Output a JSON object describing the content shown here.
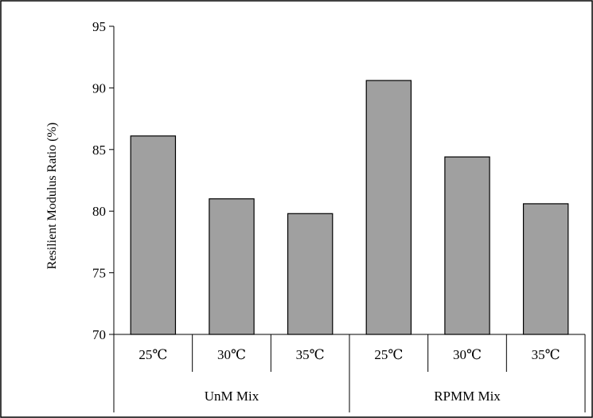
{
  "chart_data": {
    "type": "bar",
    "title": "",
    "xlabel": "",
    "ylabel": "Resilient Modulus Ratio (%)",
    "ylim": [
      70,
      95
    ],
    "yticks": [
      70,
      75,
      80,
      85,
      90,
      95
    ],
    "grid": false,
    "legend": "none",
    "groups": [
      {
        "label": "UnM Mix",
        "categories": [
          "25℃",
          "30℃",
          "35℃"
        ],
        "values": [
          86.1,
          81.0,
          79.8
        ]
      },
      {
        "label": "RPMM Mix",
        "categories": [
          "25℃",
          "30℃",
          "35℃"
        ],
        "values": [
          90.6,
          84.4,
          80.6
        ]
      }
    ],
    "bar_color": "#a0a0a0",
    "bar_stroke": "#000000"
  }
}
